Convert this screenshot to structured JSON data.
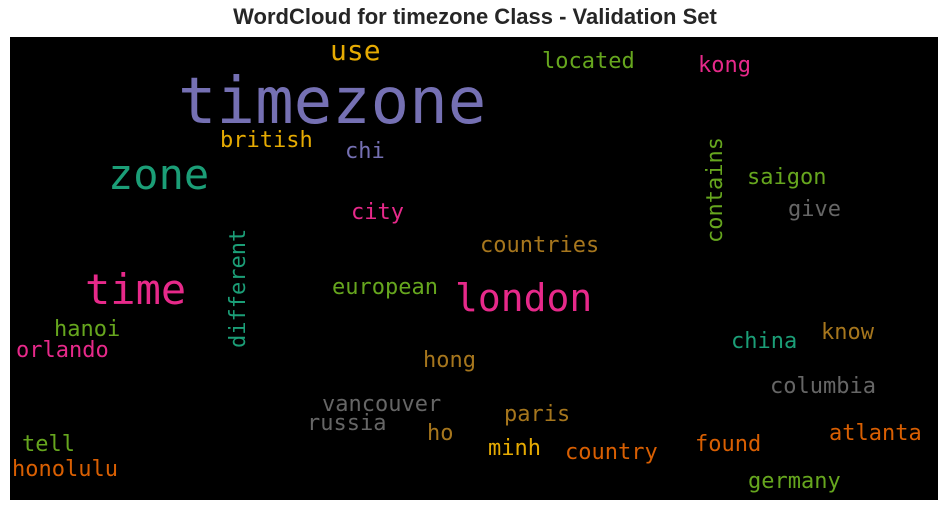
{
  "chart_data": {
    "type": "wordcloud",
    "title": "WordCloud for timezone Class - Validation Set",
    "background": "#000000",
    "words": [
      {
        "text": "timezone",
        "color": "#7570b3"
      },
      {
        "text": "zone",
        "color": "#1b9e77"
      },
      {
        "text": "time",
        "color": "#e7298a"
      },
      {
        "text": "london",
        "color": "#e7298a"
      },
      {
        "text": "use",
        "color": "#e6ab02"
      },
      {
        "text": "located",
        "color": "#66a61e"
      },
      {
        "text": "kong",
        "color": "#e7298a"
      },
      {
        "text": "british",
        "color": "#e6ab02"
      },
      {
        "text": "chi",
        "color": "#7570b3"
      },
      {
        "text": "contains",
        "color": "#66a61e",
        "orientation": "vertical"
      },
      {
        "text": "saigon",
        "color": "#66a61e"
      },
      {
        "text": "give",
        "color": "#666666"
      },
      {
        "text": "city",
        "color": "#e7298a"
      },
      {
        "text": "countries",
        "color": "#a6761d"
      },
      {
        "text": "different",
        "color": "#1b9e77",
        "orientation": "vertical"
      },
      {
        "text": "european",
        "color": "#66a61e"
      },
      {
        "text": "hanoi",
        "color": "#66a61e"
      },
      {
        "text": "orlando",
        "color": "#e7298a"
      },
      {
        "text": "know",
        "color": "#a6761d"
      },
      {
        "text": "china",
        "color": "#1b9e77"
      },
      {
        "text": "hong",
        "color": "#a6761d"
      },
      {
        "text": "columbia",
        "color": "#666666"
      },
      {
        "text": "vancouver",
        "color": "#666666"
      },
      {
        "text": "russia",
        "color": "#666666"
      },
      {
        "text": "paris",
        "color": "#a6761d"
      },
      {
        "text": "ho",
        "color": "#a6761d"
      },
      {
        "text": "minh",
        "color": "#e6ab02"
      },
      {
        "text": "country",
        "color": "#d95f02"
      },
      {
        "text": "found",
        "color": "#d95f02"
      },
      {
        "text": "atlanta",
        "color": "#d95f02"
      },
      {
        "text": "tell",
        "color": "#66a61e"
      },
      {
        "text": "honolulu",
        "color": "#d95f02"
      },
      {
        "text": "germany",
        "color": "#66a61e"
      }
    ]
  }
}
